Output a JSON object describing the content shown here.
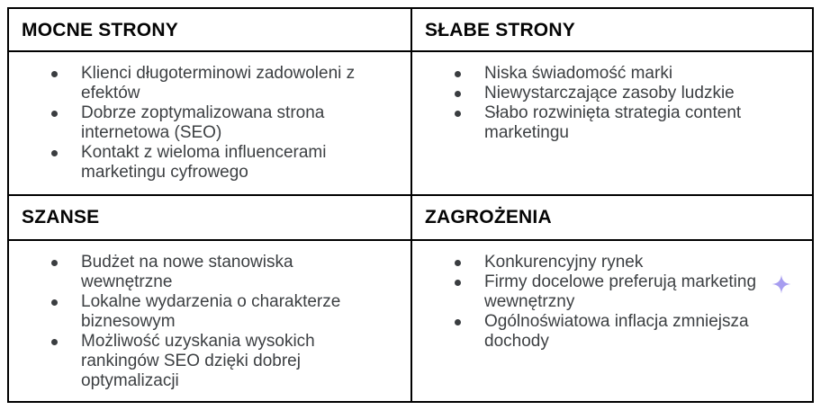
{
  "page": {
    "background_color": "#ffffff",
    "table_border_color": "#000000",
    "header_text_color": "#050505",
    "body_text_color": "#3d4043"
  },
  "icons": {
    "ai_sparkle": {
      "name": "ai-sparkle",
      "glyph": "✦",
      "color": "#a79df0"
    }
  },
  "quadrants": [
    {
      "id": "strengths",
      "title": "MOCNE STRONY",
      "items": [
        "Klienci długoterminowi zadowoleni z\nefektów",
        "Dobrze zoptymalizowana strona\ninternetowa (SEO)",
        "Kontakt z wieloma influencerami\nmarketingu cyfrowego"
      ]
    },
    {
      "id": "weaknesses",
      "title": "SŁABE STRONY",
      "items": [
        "Niska świadomość marki",
        "Niewystarczające zasoby ludzkie",
        "Słabo rozwinięta strategia content\nmarketingu"
      ]
    },
    {
      "id": "opportunities",
      "title": "SZANSE",
      "items": [
        "Budżet na nowe stanowiska\nwewnętrzne",
        "Lokalne wydarzenia o charakterze\nbiznesowym",
        "Możliwość uzyskania wysokich\nrankingów SEO dzięki dobrej\noptymalizacji"
      ]
    },
    {
      "id": "threats",
      "title": "ZAGROŻENIA",
      "items": [
        "Konkurencyjny rynek",
        "Firmy docelowe preferują marketing\nwewnętrzny",
        "Ogólnoświatowa inflacja zmniejsza\ndochody"
      ]
    }
  ]
}
